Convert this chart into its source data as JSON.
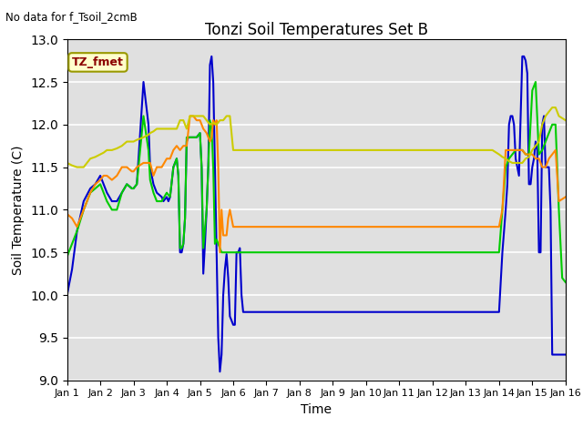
{
  "title": "Tonzi Soil Temperatures Set B",
  "no_data_label": "No data for f_Tsoil_2cmB",
  "legend_label": "TZ_fmet",
  "xlabel": "Time",
  "ylabel": "Soil Temperature (C)",
  "ylim": [
    9.0,
    13.0
  ],
  "yticks": [
    9.0,
    9.5,
    10.0,
    10.5,
    11.0,
    11.5,
    12.0,
    12.5,
    13.0
  ],
  "xtick_labels": [
    "Jan 1",
    "Jan 2",
    "Jan 3",
    "Jan 4",
    "Jan 5",
    "Jan 6",
    "Jan 7",
    "Jan 8",
    "Jan 9",
    "Jan 10",
    "Jan 11",
    "Jan 12",
    "Jan 13",
    "Jan 14",
    "Jan 15",
    "Jan 16"
  ],
  "background_color": "#e0e0e0",
  "series": {
    "4cm": {
      "color": "#0000cc",
      "x": [
        0,
        0.15,
        0.3,
        0.5,
        0.7,
        0.85,
        1.0,
        1.1,
        1.2,
        1.35,
        1.5,
        1.65,
        1.8,
        1.95,
        2.0,
        2.1,
        2.3,
        2.45,
        2.5,
        2.6,
        2.7,
        2.85,
        2.9,
        3.0,
        3.05,
        3.1,
        3.2,
        3.25,
        3.3,
        3.35,
        3.4,
        3.45,
        3.5,
        3.55,
        3.6,
        3.65,
        3.7,
        3.8,
        3.9,
        4.0,
        4.05,
        4.1,
        4.15,
        4.2,
        4.25,
        4.3,
        4.35,
        4.4,
        4.45,
        4.5,
        4.55,
        4.6,
        4.65,
        4.7,
        4.75,
        4.8,
        4.85,
        4.9,
        4.95,
        5.0,
        5.05,
        5.1,
        5.15,
        5.2,
        5.25,
        5.3,
        5.4,
        5.5,
        5.6,
        5.7,
        6.0,
        6.5,
        7.0,
        7.5,
        8.0,
        8.5,
        9.0,
        9.5,
        10.0,
        10.5,
        11.0,
        11.5,
        12.0,
        12.5,
        12.8,
        13.0,
        13.1,
        13.2,
        13.25,
        13.3,
        13.35,
        13.4,
        13.45,
        13.5,
        13.6,
        13.7,
        13.75,
        13.8,
        13.85,
        13.9,
        13.95,
        14.0,
        14.05,
        14.1,
        14.15,
        14.2,
        14.25,
        14.3,
        14.35,
        14.4,
        14.45,
        14.5,
        14.55,
        14.6,
        14.65,
        14.7,
        14.75,
        14.8,
        14.85,
        14.9,
        15.0
      ],
      "y": [
        10.0,
        10.3,
        10.75,
        11.1,
        11.25,
        11.3,
        11.4,
        11.3,
        11.2,
        11.1,
        11.1,
        11.2,
        11.3,
        11.25,
        11.25,
        11.3,
        12.5,
        12.0,
        11.5,
        11.3,
        11.2,
        11.15,
        11.1,
        11.15,
        11.1,
        11.15,
        11.5,
        11.55,
        11.6,
        11.4,
        10.5,
        10.5,
        10.6,
        10.9,
        11.8,
        11.85,
        11.85,
        11.85,
        11.85,
        11.9,
        11.5,
        10.25,
        10.6,
        11.0,
        11.5,
        12.7,
        12.8,
        12.5,
        11.5,
        10.5,
        9.5,
        9.1,
        9.3,
        10.0,
        10.3,
        10.48,
        10.2,
        9.75,
        9.7,
        9.65,
        9.65,
        10.5,
        10.5,
        10.55,
        10.0,
        9.8,
        9.8,
        9.8,
        9.8,
        9.8,
        9.8,
        9.8,
        9.8,
        9.8,
        9.8,
        9.8,
        9.8,
        9.8,
        9.8,
        9.8,
        9.8,
        9.8,
        9.8,
        9.8,
        9.8,
        9.8,
        10.5,
        11.0,
        11.3,
        12.0,
        12.1,
        12.1,
        12.0,
        11.6,
        11.4,
        12.8,
        12.8,
        12.75,
        12.6,
        11.3,
        11.3,
        11.5,
        11.6,
        11.8,
        11.7,
        10.5,
        10.5,
        12.0,
        12.1,
        11.5,
        11.5,
        11.5,
        11.0,
        9.3,
        9.3,
        9.3,
        9.3,
        9.3,
        9.3,
        9.3,
        9.3
      ]
    },
    "8cm": {
      "color": "#00cc00",
      "x": [
        0,
        0.15,
        0.3,
        0.5,
        0.7,
        0.85,
        1.0,
        1.1,
        1.2,
        1.35,
        1.5,
        1.65,
        1.8,
        1.95,
        2.0,
        2.1,
        2.3,
        2.45,
        2.5,
        2.6,
        2.7,
        2.85,
        3.0,
        3.1,
        3.2,
        3.25,
        3.3,
        3.35,
        3.4,
        3.45,
        3.5,
        3.55,
        3.6,
        3.65,
        3.7,
        3.8,
        3.9,
        4.0,
        4.05,
        4.1,
        4.2,
        4.25,
        4.3,
        4.35,
        4.4,
        4.45,
        4.5,
        4.55,
        4.6,
        4.65,
        4.7,
        4.75,
        4.8,
        4.85,
        4.9,
        4.95,
        5.0,
        5.05,
        5.1,
        5.3,
        5.5,
        5.7,
        6.0,
        6.5,
        7.0,
        7.5,
        8.0,
        8.5,
        9.0,
        9.5,
        10.0,
        10.5,
        11.0,
        11.5,
        12.0,
        12.5,
        12.8,
        13.0,
        13.1,
        13.2,
        13.3,
        13.4,
        13.5,
        13.6,
        13.7,
        13.8,
        13.9,
        14.0,
        14.1,
        14.2,
        14.3,
        14.35,
        14.4,
        14.5,
        14.6,
        14.7,
        14.8,
        14.9,
        15.0
      ],
      "y": [
        10.45,
        10.6,
        10.75,
        11.0,
        11.2,
        11.25,
        11.3,
        11.2,
        11.1,
        11.0,
        11.0,
        11.2,
        11.3,
        11.25,
        11.25,
        11.3,
        12.1,
        11.7,
        11.35,
        11.2,
        11.1,
        11.1,
        11.2,
        11.15,
        11.5,
        11.55,
        11.6,
        11.4,
        10.55,
        10.55,
        10.6,
        10.9,
        11.85,
        11.85,
        11.85,
        11.85,
        11.85,
        11.9,
        11.5,
        10.55,
        11.0,
        11.5,
        12.05,
        11.95,
        11.5,
        10.6,
        10.65,
        10.6,
        10.55,
        10.5,
        10.5,
        10.5,
        10.5,
        10.5,
        10.5,
        10.5,
        10.5,
        10.5,
        10.5,
        10.5,
        10.5,
        10.5,
        10.5,
        10.5,
        10.5,
        10.5,
        10.5,
        10.5,
        10.5,
        10.5,
        10.5,
        10.5,
        10.5,
        10.5,
        10.5,
        10.5,
        10.5,
        10.5,
        11.0,
        11.5,
        11.6,
        11.65,
        11.7,
        11.7,
        11.7,
        11.65,
        11.65,
        12.4,
        12.5,
        11.65,
        11.7,
        11.75,
        11.8,
        11.9,
        12.0,
        12.0,
        11.0,
        10.2,
        10.15
      ]
    },
    "16cm": {
      "color": "#ff8800",
      "x": [
        0,
        0.15,
        0.3,
        0.5,
        0.7,
        0.85,
        1.0,
        1.1,
        1.2,
        1.35,
        1.5,
        1.65,
        1.8,
        1.95,
        2.0,
        2.1,
        2.3,
        2.45,
        2.5,
        2.6,
        2.7,
        2.85,
        3.0,
        3.1,
        3.2,
        3.3,
        3.4,
        3.5,
        3.6,
        3.7,
        3.8,
        3.9,
        4.0,
        4.1,
        4.2,
        4.3,
        4.35,
        4.4,
        4.45,
        4.5,
        4.55,
        4.6,
        4.65,
        4.7,
        4.75,
        4.8,
        4.85,
        4.9,
        5.0,
        5.1,
        5.3,
        5.5,
        5.7,
        6.0,
        6.5,
        7.0,
        7.5,
        8.0,
        8.5,
        9.0,
        9.5,
        10.0,
        10.5,
        11.0,
        11.5,
        12.0,
        12.5,
        12.8,
        13.0,
        13.1,
        13.2,
        13.3,
        13.4,
        13.5,
        13.6,
        13.7,
        13.8,
        13.9,
        14.0,
        14.1,
        14.2,
        14.3,
        14.4,
        14.5,
        14.6,
        14.7,
        14.8,
        15.0
      ],
      "y": [
        10.95,
        10.9,
        10.8,
        11.0,
        11.2,
        11.3,
        11.35,
        11.4,
        11.4,
        11.35,
        11.4,
        11.5,
        11.5,
        11.45,
        11.45,
        11.5,
        11.55,
        11.55,
        11.55,
        11.4,
        11.5,
        11.5,
        11.6,
        11.6,
        11.7,
        11.75,
        11.7,
        11.75,
        11.75,
        12.1,
        12.1,
        12.05,
        12.05,
        11.95,
        11.9,
        11.8,
        11.85,
        12.05,
        12.0,
        12.05,
        11.5,
        10.5,
        11.0,
        10.7,
        10.7,
        10.7,
        10.9,
        11.0,
        10.8,
        10.8,
        10.8,
        10.8,
        10.8,
        10.8,
        10.8,
        10.8,
        10.8,
        10.8,
        10.8,
        10.8,
        10.8,
        10.8,
        10.8,
        10.8,
        10.8,
        10.8,
        10.8,
        10.8,
        10.8,
        11.0,
        11.7,
        11.7,
        11.7,
        11.7,
        11.7,
        11.7,
        11.65,
        11.65,
        11.65,
        11.6,
        11.6,
        11.5,
        11.5,
        11.6,
        11.65,
        11.7,
        11.1,
        11.15
      ]
    },
    "32cm": {
      "color": "#cccc00",
      "x": [
        0,
        0.15,
        0.3,
        0.5,
        0.7,
        0.85,
        1.0,
        1.1,
        1.2,
        1.35,
        1.5,
        1.65,
        1.8,
        1.95,
        2.0,
        2.1,
        2.3,
        2.45,
        2.5,
        2.6,
        2.7,
        2.85,
        3.0,
        3.1,
        3.2,
        3.3,
        3.4,
        3.5,
        3.6,
        3.7,
        3.8,
        3.9,
        4.0,
        4.1,
        4.2,
        4.3,
        4.4,
        4.5,
        4.6,
        4.7,
        4.8,
        4.9,
        5.0,
        5.3,
        5.5,
        6.0,
        6.5,
        7.0,
        7.5,
        8.0,
        8.5,
        9.0,
        9.5,
        10.0,
        10.5,
        11.0,
        11.5,
        12.0,
        12.5,
        12.8,
        13.0,
        13.1,
        13.2,
        13.3,
        13.4,
        13.5,
        13.6,
        13.7,
        13.8,
        13.9,
        14.0,
        14.1,
        14.2,
        14.3,
        14.35,
        14.4,
        14.5,
        14.6,
        14.7,
        14.8,
        15.0
      ],
      "y": [
        11.55,
        11.52,
        11.5,
        11.5,
        11.6,
        11.62,
        11.65,
        11.67,
        11.7,
        11.7,
        11.72,
        11.75,
        11.8,
        11.8,
        11.8,
        11.82,
        11.85,
        11.88,
        11.9,
        11.92,
        11.95,
        11.95,
        11.95,
        11.95,
        11.95,
        11.95,
        12.05,
        12.05,
        11.95,
        12.1,
        12.1,
        12.1,
        12.1,
        12.1,
        12.05,
        12.0,
        12.02,
        12.0,
        12.05,
        12.05,
        12.1,
        12.1,
        11.7,
        11.7,
        11.7,
        11.7,
        11.7,
        11.7,
        11.7,
        11.7,
        11.7,
        11.7,
        11.7,
        11.7,
        11.7,
        11.7,
        11.7,
        11.7,
        11.7,
        11.7,
        11.65,
        11.62,
        11.6,
        11.57,
        11.55,
        11.55,
        11.55,
        11.55,
        11.6,
        11.62,
        11.7,
        11.75,
        11.8,
        12.0,
        12.05,
        12.1,
        12.15,
        12.2,
        12.2,
        12.1,
        12.05
      ]
    }
  }
}
